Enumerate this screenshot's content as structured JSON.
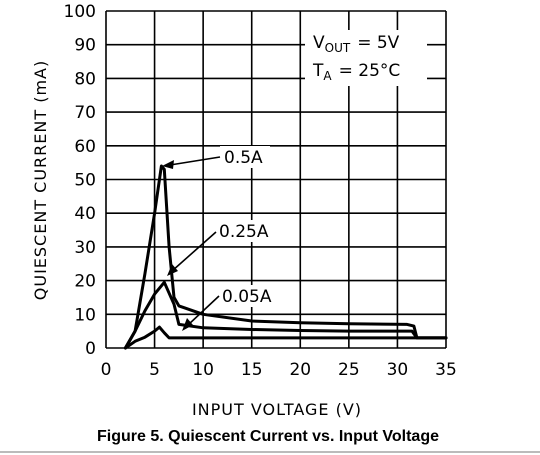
{
  "chart_data": {
    "type": "line",
    "xlabel": "INPUT VOLTAGE (V)",
    "ylabel": "QUIESCENT CURRENT (mA)",
    "xlim": [
      0,
      35
    ],
    "ylim": [
      0,
      100
    ],
    "xticks": [
      0,
      5,
      10,
      15,
      20,
      25,
      30,
      35
    ],
    "yticks": [
      0,
      10,
      20,
      30,
      40,
      50,
      60,
      70,
      80,
      90,
      100
    ],
    "grid": true,
    "conditions": {
      "vout": {
        "symbol": "V",
        "sub": "OUT",
        "value": "= 5V"
      },
      "ta": {
        "symbol": "T",
        "sub": "A",
        "value": "= 25°C"
      }
    },
    "series": [
      {
        "name": "0.5A",
        "x": [
          2,
          3,
          4,
          5,
          5.7,
          6,
          6.5,
          7,
          7.5,
          8,
          10,
          15,
          20,
          25,
          31,
          31.7,
          32,
          35
        ],
        "y": [
          0,
          5,
          22,
          40,
          54,
          53,
          30,
          15,
          12.5,
          12,
          10,
          8,
          7.5,
          7.2,
          7,
          6.5,
          3,
          3
        ]
      },
      {
        "name": "0.25A",
        "x": [
          2,
          3,
          4,
          5,
          6,
          7,
          7.5,
          10,
          15,
          20,
          25,
          31,
          31.5,
          32,
          35
        ],
        "y": [
          0,
          5,
          11,
          16,
          19.5,
          13,
          7,
          6,
          5.5,
          5.2,
          5,
          5,
          5,
          3,
          3
        ]
      },
      {
        "name": "0.05A",
        "x": [
          2,
          3,
          4,
          5,
          5.5,
          6,
          6.5,
          7,
          10,
          15,
          20,
          25,
          30,
          35
        ],
        "y": [
          0,
          2,
          3.2,
          5,
          6.2,
          4.5,
          3,
          3,
          3,
          3,
          3,
          3,
          3,
          3
        ]
      }
    ]
  },
  "caption": "Figure 5. Quiescent Current vs. Input Voltage"
}
